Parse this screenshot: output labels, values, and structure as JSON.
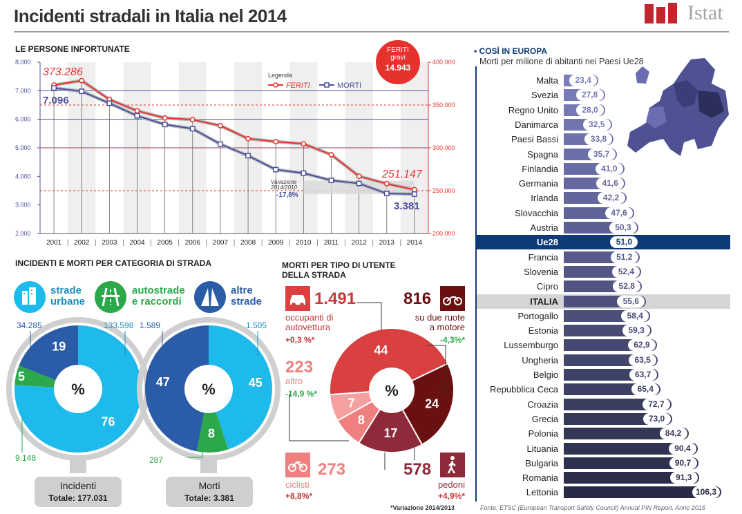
{
  "title": "Incidenti stradali in Italia nel 2014",
  "logo_text": "Istat",
  "line_chart": {
    "heading": "LE PERSONE INFORTUNATE",
    "feriti_gravi_label": "FERITI\ngravi",
    "feriti_gravi_value": "14.943",
    "legend_title": "Legenda",
    "legend_feriti": "FERITI",
    "legend_morti": "MORTI",
    "feriti_first_label": "373.286",
    "feriti_last_label": "251.147",
    "morti_first_label": "7.096",
    "morti_last_label": "3.381",
    "variazione_label": "Variazione\n2014/2010",
    "variazione_value": "-17,8%",
    "left_ticks": [
      "8.000",
      "7.000",
      "6.000",
      "5.000",
      "4.000",
      "3.000",
      "2.000"
    ],
    "right_ticks": [
      "400.000",
      "350.000",
      "300.000",
      "250.000",
      "200.000"
    ],
    "years": [
      "2001",
      "2002",
      "2003",
      "2004",
      "2005",
      "2006",
      "2007",
      "2008",
      "2009",
      "2010",
      "2011",
      "2012",
      "2013",
      "2014"
    ]
  },
  "chart_data": [
    {
      "type": "line",
      "title": "LE PERSONE INFORTUNATE",
      "x": [
        2001,
        2002,
        2003,
        2004,
        2005,
        2006,
        2007,
        2008,
        2009,
        2010,
        2011,
        2012,
        2013,
        2014
      ],
      "series": [
        {
          "name": "FERITI",
          "axis": "right",
          "values": [
            373286,
            378492,
            356475,
            343179,
            334858,
            332955,
            325850,
            310745,
            307258,
            304720,
            292019,
            266864,
            258093,
            251147
          ]
        },
        {
          "name": "MORTI",
          "axis": "left",
          "values": [
            7096,
            6980,
            6563,
            6122,
            5818,
            5669,
            5131,
            4725,
            4237,
            4114,
            3860,
            3753,
            3401,
            3381
          ]
        }
      ],
      "ylim_left": [
        2000,
        8000
      ],
      "ylim_right": [
        200000,
        400000
      ],
      "color_feriti": "#e5322d",
      "color_morti": "#4a4f9c"
    },
    {
      "type": "pie",
      "title": "Incidenti",
      "categories": [
        "strade urbane",
        "autostrade e raccordi",
        "altre strade"
      ],
      "values": [
        76,
        5,
        19
      ],
      "counts": [
        "133.598",
        "9.148",
        "34.285"
      ],
      "total_label": "Totale: 177.031"
    },
    {
      "type": "pie",
      "title": "Morti",
      "categories": [
        "strade urbane",
        "autostrade e raccordi",
        "altre strade"
      ],
      "values": [
        45,
        8,
        47
      ],
      "counts": [
        "1.505",
        "287",
        "1.589"
      ],
      "total_label": "Totale: 3.381"
    },
    {
      "type": "pie",
      "title": "MORTI PER TIPO DI UTENTE DELLA STRADA",
      "categories": [
        "occupanti di autovettura",
        "su due ruote a motore",
        "pedoni",
        "ciclisti",
        "altro"
      ],
      "values": [
        44,
        24,
        17,
        8,
        7
      ],
      "counts": [
        "1.491",
        "816",
        "578",
        "273",
        "223"
      ],
      "variations": [
        "+0,3 %*",
        "-4,3%*",
        "+4,9%*",
        "+8,8%*",
        "-14,9 %*"
      ]
    },
    {
      "type": "bar",
      "title": "COSÌ IN EUROPA",
      "subtitle": "Morti per milione di abitanti nei Paesi Ue28",
      "categories": [
        "Malta",
        "Svezia",
        "Regno Unito",
        "Danimarca",
        "Paesi Bassi",
        "Spagna",
        "Finlandia",
        "Germania",
        "Irlanda",
        "Slovacchia",
        "Austria",
        "Ue28",
        "Francia",
        "Slovenia",
        "Cipro",
        "ITALIA",
        "Portogallo",
        "Estonia",
        "Lussemburgo",
        "Ungheria",
        "Belgio",
        "Repubblica Ceca",
        "Croazia",
        "Grecia",
        "Polonia",
        "Lituania",
        "Bulgaria",
        "Romania",
        "Lettonia"
      ],
      "values": [
        23.4,
        27.8,
        28.0,
        32.5,
        33.8,
        35.7,
        41.0,
        41.6,
        42.2,
        47.6,
        50.3,
        51.0,
        51.2,
        52.4,
        52.8,
        55.6,
        58.4,
        59.3,
        62.9,
        63.5,
        63.7,
        65.4,
        72.7,
        73.0,
        84.2,
        90.4,
        90.7,
        91.3,
        106.3
      ],
      "labels": [
        "23,4",
        "27,8",
        "28,0",
        "32,5",
        "33,8",
        "35,7",
        "41,0",
        "41,6",
        "42,2",
        "47,6",
        "50,3",
        "51,0",
        "51,2",
        "52,4",
        "52,8",
        "55,6",
        "58,4",
        "59,3",
        "62,9",
        "63,5",
        "63,7",
        "65,4",
        "72,7",
        "73,0",
        "84,2",
        "90,4",
        "90,7",
        "91,3",
        "106,3"
      ],
      "highlight": {
        "Ue28": "#0f3a78",
        "ITALIA": "#d5d5d5"
      }
    }
  ],
  "strade": {
    "heading": "INCIDENTI E MORTI PER CATEGORIA DI STRADA",
    "cat_urbane": "strade\nurbane",
    "cat_autostrade": "autostrade\ne raccordi",
    "cat_altre": "altre\nstrade",
    "percent_symbol": "%",
    "incidenti_label": "Incidenti",
    "incidenti_total": "Totale: 177.031",
    "morti_label": "Morti",
    "morti_total": "Totale: 3.381",
    "colors": {
      "urbane": "#1ebaeb",
      "autostrade": "#2aa84a",
      "altre": "#2b5ca8"
    }
  },
  "utenti": {
    "heading": "MORTI PER TIPO DI UTENTE\nDELLA STRADA",
    "auto_value": "1.491",
    "auto_label": "occupanti di\nautovettura",
    "auto_var": "+0,3 %*",
    "moto_value": "816",
    "moto_label": "su due ruote\na motore",
    "moto_var": "-4,3%*",
    "altro_value": "223",
    "altro_label": "altro",
    "altro_var": "-14,9 %*",
    "ciclisti_value": "273",
    "ciclisti_label": "ciclisti",
    "ciclisti_var": "+8,8%*",
    "pedoni_value": "578",
    "pedoni_label": "pedoni",
    "pedoni_var": "+4,9%*",
    "percent_symbol": "%",
    "footnote": "*Variazione 2014/2013"
  },
  "europa": {
    "heading": "COSÌ IN EUROPA",
    "subtitle": "Morti per milione di abitanti nei Paesi Ue28",
    "source": "Fonte: ETSC (European Transport Safety Council) Annual PIN Report. Anno 2015"
  }
}
